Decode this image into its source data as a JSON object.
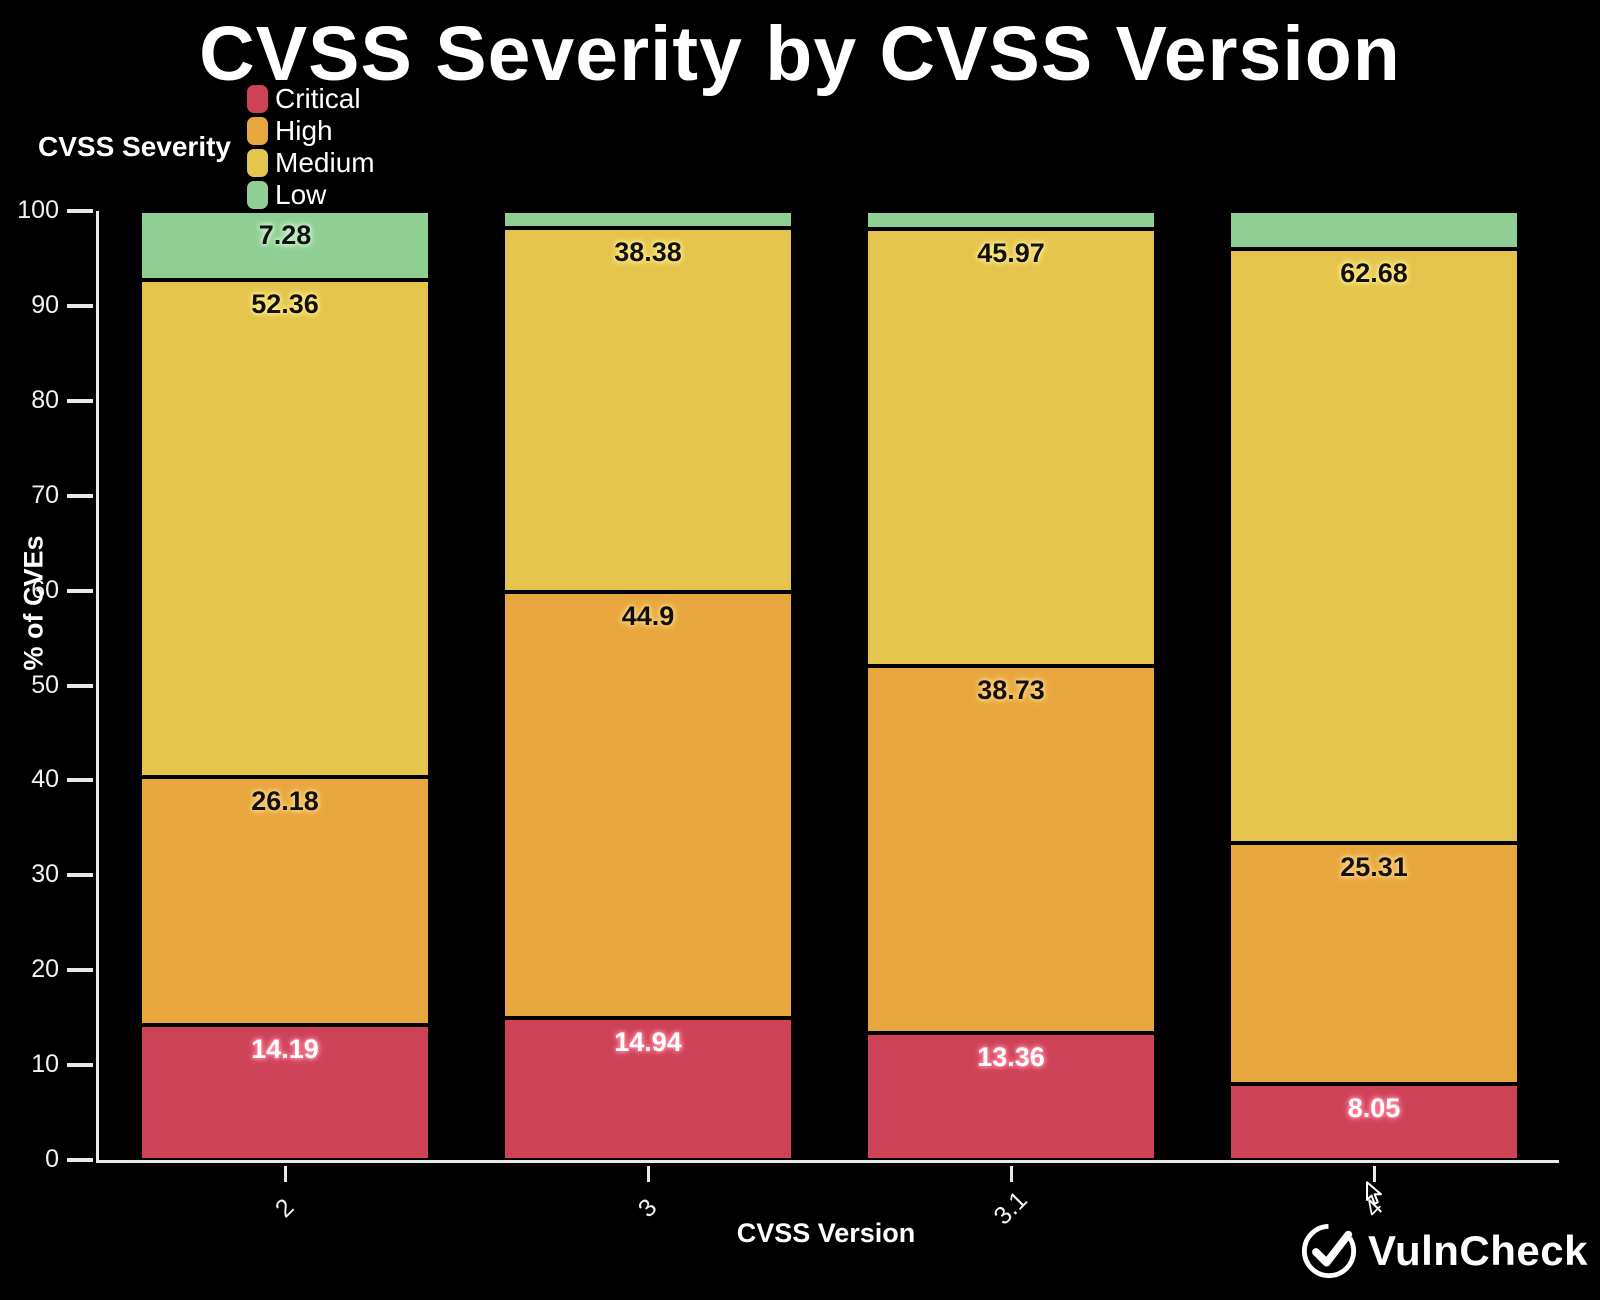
{
  "title": "CVSS Severity by CVSS Version",
  "legend": {
    "title": "CVSS Severity"
  },
  "axes": {
    "x_title": "CVSS Version",
    "y_title": "% of CVEs"
  },
  "brand": {
    "name": "VulnCheck"
  },
  "colors": {
    "background": "#000000",
    "axis": "#e8e8e8",
    "text": "#ffffff"
  },
  "chart_data": {
    "type": "bar",
    "stacked": true,
    "title": "CVSS Severity by CVSS Version",
    "xlabel": "CVSS Version",
    "ylabel": "% of CVEs",
    "categories": [
      "2",
      "3",
      "3.1",
      "4"
    ],
    "ylim": [
      0,
      100
    ],
    "yticks": [
      0,
      10,
      20,
      30,
      40,
      50,
      60,
      70,
      80,
      90,
      100
    ],
    "grid": false,
    "legend_position": "top-left",
    "series": [
      {
        "name": "Critical",
        "color": "#cd4257",
        "halo": "#ff8298",
        "label_color": "#ffffff",
        "values": [
          14.19,
          14.94,
          13.36,
          8.05
        ],
        "labels": [
          "14.19",
          "14.94",
          "13.36",
          "8.05"
        ]
      },
      {
        "name": "High",
        "color": "#e8a73e",
        "halo": "#ffd17c",
        "label_color": "#111111",
        "values": [
          26.18,
          44.9,
          38.73,
          25.31
        ],
        "labels": [
          "26.18",
          "44.9",
          "38.73",
          "25.31"
        ]
      },
      {
        "name": "Medium",
        "color": "#e4c44d",
        "halo": "#ffe985",
        "label_color": "#111111",
        "values": [
          52.36,
          38.38,
          45.97,
          62.68
        ],
        "labels": [
          "52.36",
          "38.38",
          "45.97",
          "62.68"
        ]
      },
      {
        "name": "Low",
        "color": "#8fcf93",
        "halo": "#c9f2cb",
        "label_color": "#111111",
        "values": [
          7.28,
          1.78,
          1.94,
          3.96
        ],
        "labels": [
          "7.28",
          "",
          "",
          ""
        ]
      }
    ]
  }
}
